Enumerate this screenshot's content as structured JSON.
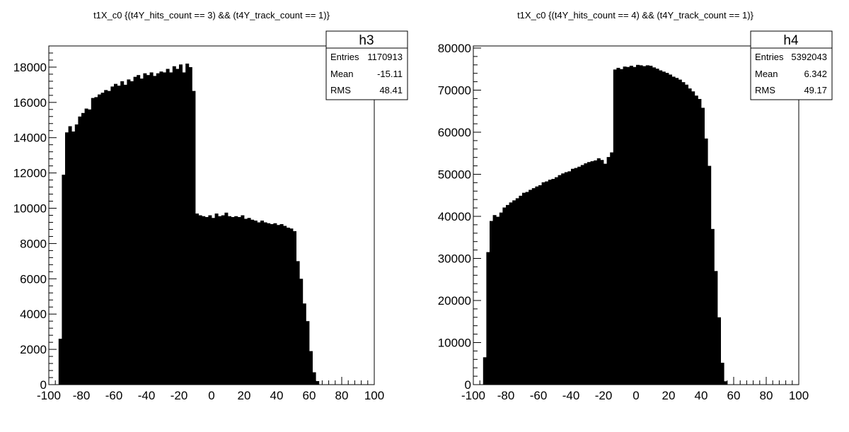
{
  "chart_data": [
    {
      "type": "bar",
      "title": "t1X_c0  {(t4Y_hits_count == 3) && (t4Y_track_count == 1)}",
      "stats": {
        "name": "h3",
        "entries_label": "Entries",
        "entries": "1170913",
        "mean_label": "Mean",
        "mean": "-15.11",
        "rms_label": "RMS",
        "rms": "48.41"
      },
      "xlim": [
        -100,
        100
      ],
      "ylim": [
        0,
        19200
      ],
      "xticks": [
        -100,
        -80,
        -60,
        -40,
        -20,
        0,
        20,
        40,
        60,
        80,
        100
      ],
      "yticks": [
        0,
        2000,
        4000,
        6000,
        8000,
        10000,
        12000,
        14000,
        16000,
        18000
      ],
      "bin_width": 2,
      "bin_start": -94,
      "values": [
        2600,
        11900,
        14300,
        14650,
        14350,
        14750,
        15200,
        15400,
        15650,
        15600,
        16250,
        16300,
        16450,
        16550,
        16700,
        16650,
        16900,
        17050,
        16950,
        17200,
        17000,
        17300,
        17200,
        17450,
        17550,
        17350,
        17650,
        17550,
        17700,
        17500,
        17650,
        17750,
        17700,
        17900,
        17700,
        18050,
        17900,
        18150,
        17700,
        18200,
        18000,
        16650,
        9700,
        9600,
        9550,
        9500,
        9600,
        9450,
        9700,
        9550,
        9600,
        9750,
        9550,
        9500,
        9550,
        9500,
        9600,
        9400,
        9450,
        9350,
        9300,
        9200,
        9300,
        9200,
        9150,
        9100,
        9150,
        9050,
        9100,
        9000,
        8900,
        8850,
        8700,
        7000,
        6000,
        4600,
        3600,
        1900,
        700,
        200,
        20
      ]
    },
    {
      "type": "bar",
      "title": "t1X_c0  {(t4Y_hits_count == 4) && (t4Y_track_count == 1)}",
      "stats": {
        "name": "h4",
        "entries_label": "Entries",
        "entries": "5392043",
        "mean_label": "Mean",
        "mean": "6.342",
        "rms_label": "RMS",
        "rms": "49.17"
      },
      "xlim": [
        -100,
        100
      ],
      "ylim": [
        0,
        80500
      ],
      "xticks": [
        -100,
        -80,
        -60,
        -40,
        -20,
        0,
        20,
        40,
        60,
        80,
        100
      ],
      "yticks": [
        0,
        10000,
        20000,
        30000,
        40000,
        50000,
        60000,
        70000,
        80000
      ],
      "bin_width": 2,
      "bin_start": -94,
      "values": [
        6500,
        31500,
        38900,
        40300,
        39900,
        40900,
        42100,
        42700,
        43300,
        43800,
        44300,
        44900,
        45600,
        45800,
        46300,
        46700,
        47100,
        47400,
        48100,
        48300,
        48700,
        48900,
        49300,
        49800,
        50200,
        50500,
        50700,
        51300,
        51500,
        51800,
        52200,
        52600,
        52900,
        53100,
        53300,
        53800,
        53400,
        52500,
        54100,
        55200,
        74900,
        75300,
        75000,
        75600,
        75500,
        75800,
        75500,
        76000,
        75900,
        75700,
        75900,
        75800,
        75400,
        75100,
        74700,
        74400,
        74100,
        73700,
        73200,
        72900,
        72500,
        71900,
        71300,
        70400,
        69700,
        68700,
        67900,
        65800,
        58500,
        52000,
        37000,
        27000,
        16000,
        5200,
        800,
        50
      ]
    }
  ]
}
